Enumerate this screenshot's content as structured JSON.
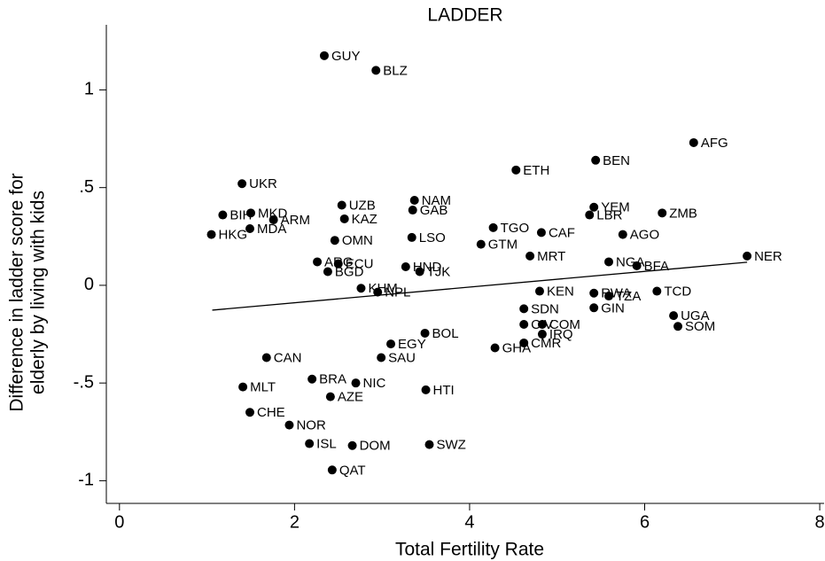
{
  "chart_data": {
    "type": "scatter",
    "title": "LADDER",
    "x_label": "Total Fertility Rate",
    "y_label": [
      "Difference in ladder score for",
      "elderly by living with kids"
    ],
    "xlim": [
      -0.15,
      8.05
    ],
    "ylim": [
      -1.116,
      1.333
    ],
    "xticks": [
      0,
      2,
      4,
      6,
      8
    ],
    "yticks": [
      -1,
      {
        "value": -0.5,
        "label": "-.5"
      },
      0,
      {
        "value": 0.5,
        "label": ".5"
      },
      1
    ],
    "color": "#000000",
    "labels": [
      "GUY",
      "BLZ",
      "AFG",
      "BEN",
      "ETH",
      "UKR",
      "NAM",
      "UZB",
      "GAB",
      "YEM",
      "ZMB",
      "LBR",
      "MKD",
      "BIH",
      "KAZ",
      "ARM",
      "TGO",
      "MDA",
      "CAF",
      "AGO",
      "HKG",
      "LSO",
      "MRT",
      "GTM",
      "OMN",
      "NGA",
      "BFA",
      "NER",
      "ARG",
      "ECU",
      "BGD",
      "HND",
      "TJK",
      "KHM",
      "NPL",
      "KEN",
      "TCD",
      "RWA",
      "TZA",
      "GIN",
      "SDN",
      "UGA",
      "SOM",
      "CIV",
      "COM",
      "BOL",
      "IRQ",
      "CMR",
      "GHA",
      "EGY",
      "SAU",
      "MLT",
      "HTI",
      "CAN",
      "BRA",
      "NIC",
      "AZE",
      "CHE",
      "NOR",
      "ISL",
      "DOM",
      "SWZ",
      "QAT"
    ],
    "x": [
      2.34,
      2.93,
      6.56,
      5.44,
      4.53,
      1.4,
      3.37,
      2.54,
      3.35,
      5.42,
      6.2,
      5.37,
      1.5,
      1.18,
      2.57,
      1.76,
      4.27,
      1.49,
      4.82,
      5.75,
      1.05,
      3.34,
      4.69,
      4.13,
      2.46,
      5.59,
      5.91,
      7.17,
      2.26,
      2.5,
      2.38,
      3.27,
      3.43,
      2.76,
      2.95,
      4.8,
      6.14,
      5.42,
      5.59,
      5.42,
      4.62,
      6.33,
      6.38,
      4.62,
      4.83,
      3.49,
      4.83,
      4.62,
      4.29,
      3.1,
      2.99,
      1.41,
      3.5,
      1.68,
      2.2,
      2.7,
      2.41,
      1.49,
      1.94,
      2.17,
      2.66,
      3.54,
      2.43
    ],
    "y": [
      1.175,
      1.1,
      0.73,
      0.64,
      0.59,
      0.52,
      0.435,
      0.41,
      0.385,
      0.4,
      0.37,
      0.36,
      0.37,
      0.36,
      0.34,
      0.335,
      0.295,
      0.29,
      0.27,
      0.26,
      0.26,
      0.245,
      0.15,
      0.21,
      0.23,
      0.12,
      0.1,
      0.15,
      0.12,
      0.11,
      0.07,
      0.095,
      0.07,
      -0.015,
      -0.035,
      -0.03,
      -0.03,
      -0.04,
      -0.055,
      -0.115,
      -0.12,
      -0.155,
      -0.21,
      -0.2,
      -0.2,
      -0.245,
      -0.25,
      -0.295,
      -0.32,
      -0.3,
      -0.37,
      -0.52,
      -0.535,
      -0.37,
      -0.48,
      -0.5,
      -0.57,
      -0.65,
      -0.715,
      -0.81,
      -0.82,
      -0.815,
      -0.945
    ],
    "fit_line": {
      "x": [
        1.06,
        7.17
      ],
      "y": [
        -0.127,
        0.118
      ]
    }
  }
}
